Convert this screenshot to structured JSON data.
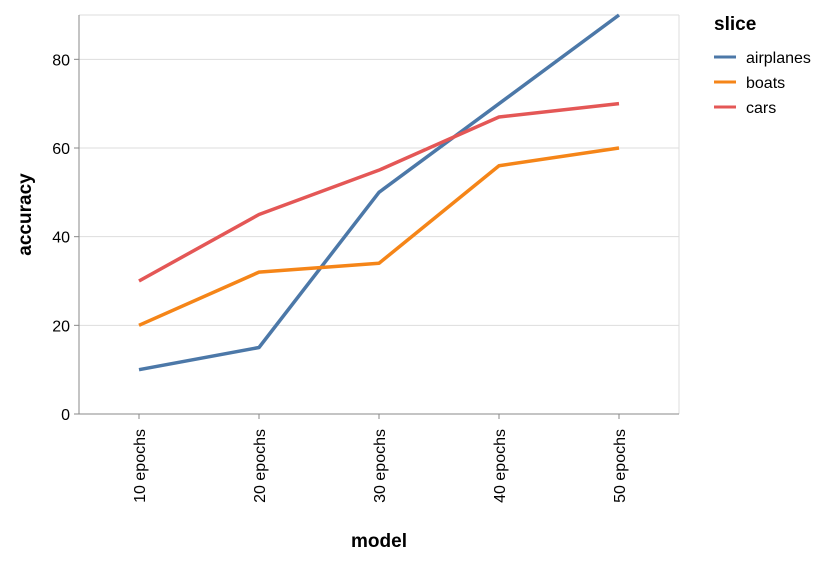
{
  "chart_data": {
    "type": "line",
    "x": [
      "10 epochs",
      "20 epochs",
      "30 epochs",
      "40 epochs",
      "50 epochs"
    ],
    "xlabel": "model",
    "ylabel": "accuracy",
    "ylim": [
      0,
      90
    ],
    "yticks": [
      0,
      20,
      40,
      60,
      80
    ],
    "grid": true,
    "legend": {
      "title": "slice",
      "position": "top-right"
    },
    "series": [
      {
        "name": "airplanes",
        "color": "#4c78a8",
        "values": [
          10,
          15,
          50,
          70,
          90
        ]
      },
      {
        "name": "boats",
        "color": "#f58518",
        "values": [
          20,
          32,
          34,
          56,
          60
        ]
      },
      {
        "name": "cars",
        "color": "#e45756",
        "values": [
          30,
          45,
          55,
          67,
          70
        ]
      }
    ]
  }
}
